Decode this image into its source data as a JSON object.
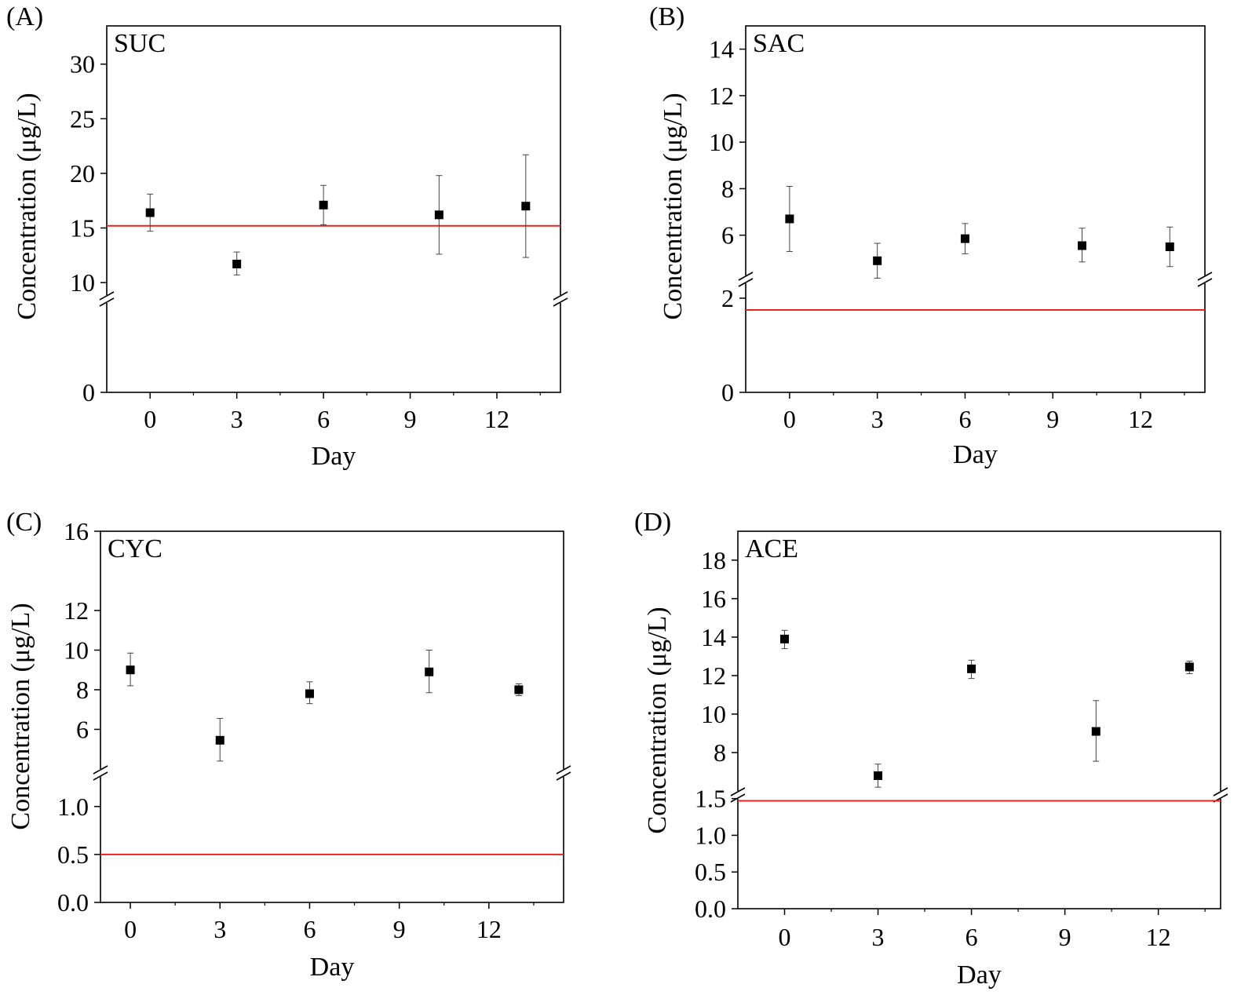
{
  "chart_data": [
    {
      "panel_label": "(A)",
      "type": "scatter",
      "annotation": "SUC",
      "xlabel": "Day",
      "ylabel": "Concentration (μg/L)",
      "x_ticks": [
        "0",
        "3",
        "6",
        "9",
        "12"
      ],
      "y_ticks_lower": [
        "0"
      ],
      "y_ticks_upper": [
        "10",
        "15",
        "20",
        "25",
        "30"
      ],
      "xlim": [
        -1.5,
        14.2
      ],
      "ylim_lower": [
        0,
        8
      ],
      "ylim_upper": [
        8.5,
        33.5
      ],
      "axis_break": true,
      "reference_line": {
        "y": 15.2,
        "color": "#e8251f"
      },
      "series": [
        {
          "x": [
            0,
            3,
            6,
            10,
            13
          ],
          "y": [
            16.4,
            11.7,
            17.1,
            16.2,
            17.0
          ],
          "err_low": [
            14.7,
            10.7,
            15.3,
            12.6,
            12.3
          ],
          "err_high": [
            18.1,
            12.8,
            18.9,
            19.8,
            21.7
          ]
        }
      ]
    },
    {
      "panel_label": "(B)",
      "type": "scatter",
      "annotation": "SAC",
      "xlabel": "Day",
      "ylabel": "Concentration (μg/L)",
      "x_ticks": [
        "0",
        "3",
        "6",
        "9",
        "12"
      ],
      "y_ticks_lower": [
        "0",
        "2"
      ],
      "y_ticks_upper": [
        "6",
        "8",
        "10",
        "12",
        "14"
      ],
      "xlim": [
        -1.5,
        14.2
      ],
      "ylim_lower": [
        0,
        2.4
      ],
      "ylim_upper": [
        4.1,
        15.0
      ],
      "axis_break": true,
      "reference_line": {
        "y": 1.75,
        "color": "#e8251f"
      },
      "series": [
        {
          "x": [
            0,
            3,
            6,
            10,
            13
          ],
          "y": [
            6.7,
            4.9,
            5.85,
            5.55,
            5.5
          ],
          "err_low": [
            5.3,
            4.15,
            5.2,
            4.85,
            4.65
          ],
          "err_high": [
            8.1,
            5.65,
            6.5,
            6.3,
            6.35
          ]
        }
      ]
    },
    {
      "panel_label": "(C)",
      "type": "scatter",
      "annotation": "CYC",
      "xlabel": "Day",
      "ylabel": "Concentration (μg/L)",
      "x_ticks": [
        "0",
        "3",
        "6",
        "9",
        "12"
      ],
      "y_ticks_lower": [
        "0.0",
        "0.5",
        "1.0"
      ],
      "y_ticks_upper": [
        "6",
        "8",
        "10",
        "12",
        "16"
      ],
      "xlim": [
        -1.0,
        14.5
      ],
      "ylim_lower": [
        0,
        1.35
      ],
      "ylim_upper": [
        3.8,
        16.0
      ],
      "axis_break": true,
      "reference_line": {
        "y": 0.5,
        "color": "#e8251f"
      },
      "series": [
        {
          "x": [
            0,
            3,
            6,
            10,
            13
          ],
          "y": [
            9.0,
            5.45,
            7.8,
            8.9,
            8.0
          ],
          "err_low": [
            8.2,
            4.4,
            7.3,
            7.85,
            7.7
          ],
          "err_high": [
            9.85,
            6.55,
            8.4,
            10.0,
            8.3
          ]
        }
      ]
    },
    {
      "panel_label": "(D)",
      "type": "scatter",
      "annotation": "ACE",
      "xlabel": "Day",
      "ylabel": "Concentration (μg/L)",
      "x_ticks": [
        "0",
        "3",
        "6",
        "9",
        "12"
      ],
      "y_ticks_lower": [
        "0.0",
        "0.5",
        "1.0",
        "1.5"
      ],
      "y_ticks_upper": [
        "8",
        "10",
        "12",
        "14",
        "16",
        "18"
      ],
      "xlim": [
        -1.5,
        14.0
      ],
      "ylim_lower": [
        0,
        1.55
      ],
      "ylim_upper": [
        5.8,
        19.5
      ],
      "axis_break": true,
      "reference_line": {
        "y": 1.47,
        "color": "#e8251f"
      },
      "series": [
        {
          "x": [
            0,
            3,
            6,
            10,
            13
          ],
          "y": [
            13.9,
            6.8,
            12.35,
            9.1,
            12.45
          ],
          "err_low": [
            13.4,
            6.2,
            11.85,
            7.55,
            12.1
          ],
          "err_high": [
            14.35,
            7.4,
            12.8,
            10.7,
            12.75
          ]
        }
      ]
    }
  ]
}
